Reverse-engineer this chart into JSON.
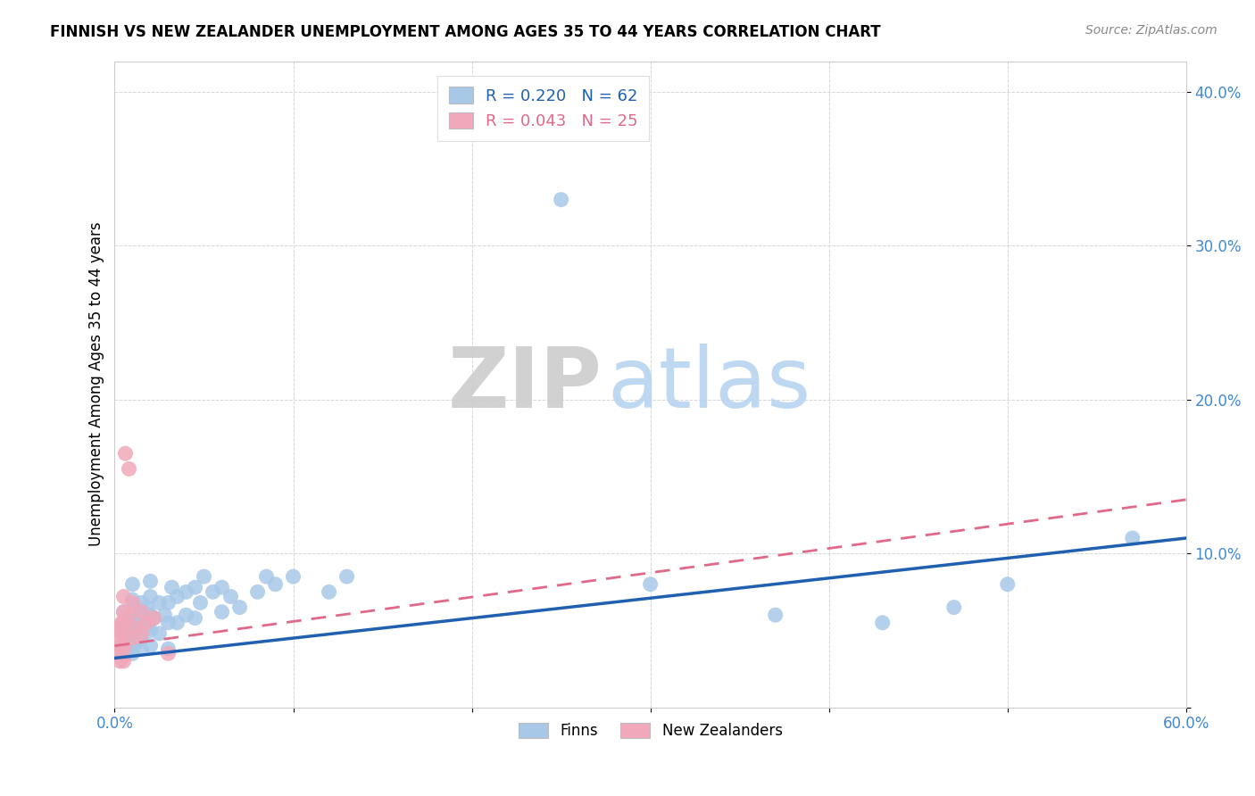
{
  "title": "FINNISH VS NEW ZEALANDER UNEMPLOYMENT AMONG AGES 35 TO 44 YEARS CORRELATION CHART",
  "source": "Source: ZipAtlas.com",
  "ylabel": "Unemployment Among Ages 35 to 44 years",
  "xlim": [
    0,
    0.6
  ],
  "ylim": [
    0,
    0.42
  ],
  "finn_R": "0.220",
  "finn_N": "62",
  "nz_R": "0.043",
  "nz_N": "25",
  "finn_color": "#a8c8e8",
  "nz_color": "#f0a8ba",
  "finn_line_color": "#2060b0",
  "nz_line_color": "#e06888",
  "watermark_zip": "ZIP",
  "watermark_atlas": "atlas",
  "watermark_zip_color": "#cccccc",
  "watermark_atlas_color": "#b8d4f0",
  "finn_x": [
    0.005,
    0.005,
    0.005,
    0.005,
    0.005,
    0.008,
    0.008,
    0.008,
    0.01,
    0.01,
    0.01,
    0.01,
    0.01,
    0.01,
    0.01,
    0.012,
    0.012,
    0.015,
    0.015,
    0.015,
    0.015,
    0.018,
    0.018,
    0.02,
    0.02,
    0.02,
    0.02,
    0.02,
    0.022,
    0.025,
    0.025,
    0.028,
    0.03,
    0.03,
    0.03,
    0.032,
    0.035,
    0.035,
    0.04,
    0.04,
    0.045,
    0.045,
    0.048,
    0.05,
    0.055,
    0.06,
    0.06,
    0.065,
    0.07,
    0.08,
    0.085,
    0.09,
    0.1,
    0.12,
    0.13,
    0.25,
    0.3,
    0.37,
    0.43,
    0.47,
    0.5,
    0.57
  ],
  "finn_y": [
    0.035,
    0.042,
    0.048,
    0.055,
    0.062,
    0.038,
    0.045,
    0.052,
    0.035,
    0.04,
    0.048,
    0.055,
    0.062,
    0.07,
    0.08,
    0.042,
    0.055,
    0.038,
    0.045,
    0.058,
    0.068,
    0.052,
    0.065,
    0.04,
    0.05,
    0.06,
    0.072,
    0.082,
    0.058,
    0.048,
    0.068,
    0.06,
    0.038,
    0.055,
    0.068,
    0.078,
    0.055,
    0.072,
    0.06,
    0.075,
    0.058,
    0.078,
    0.068,
    0.085,
    0.075,
    0.062,
    0.078,
    0.072,
    0.065,
    0.075,
    0.085,
    0.08,
    0.085,
    0.075,
    0.085,
    0.33,
    0.08,
    0.06,
    0.055,
    0.065,
    0.08,
    0.11
  ],
  "nz_x": [
    0.003,
    0.003,
    0.003,
    0.003,
    0.004,
    0.004,
    0.004,
    0.004,
    0.005,
    0.005,
    0.005,
    0.005,
    0.005,
    0.005,
    0.006,
    0.008,
    0.008,
    0.01,
    0.01,
    0.012,
    0.015,
    0.015,
    0.018,
    0.022,
    0.03
  ],
  "nz_y": [
    0.03,
    0.038,
    0.045,
    0.052,
    0.032,
    0.04,
    0.048,
    0.055,
    0.03,
    0.038,
    0.048,
    0.055,
    0.062,
    0.072,
    0.165,
    0.155,
    0.06,
    0.045,
    0.068,
    0.052,
    0.048,
    0.062,
    0.055,
    0.058,
    0.035
  ],
  "finn_line_x0": 0.0,
  "finn_line_x1": 0.6,
  "finn_line_y0": 0.032,
  "finn_line_y1": 0.11,
  "nz_line_x0": 0.0,
  "nz_line_x1": 0.6,
  "nz_line_y0": 0.04,
  "nz_line_y1": 0.135
}
